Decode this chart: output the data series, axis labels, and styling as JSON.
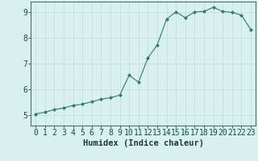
{
  "x": [
    0,
    1,
    2,
    3,
    4,
    5,
    6,
    7,
    8,
    9,
    10,
    11,
    12,
    13,
    14,
    15,
    16,
    17,
    18,
    19,
    20,
    21,
    22,
    23
  ],
  "y": [
    5.05,
    5.12,
    5.22,
    5.28,
    5.38,
    5.43,
    5.52,
    5.62,
    5.68,
    5.78,
    6.55,
    6.28,
    7.22,
    7.72,
    8.72,
    9.0,
    8.78,
    9.0,
    9.02,
    9.18,
    9.02,
    8.98,
    8.88,
    8.32
  ],
  "line_color": "#2e7d6e",
  "marker": "D",
  "marker_size": 2.0,
  "bg_color": "#d8f0ee",
  "grid_major_color": "#c8e0dc",
  "grid_minor_color": "#d0e8e4",
  "axis_color": "#4a7070",
  "xlabel": "Humidex (Indice chaleur)",
  "xlabel_fontsize": 7.5,
  "tick_fontsize": 7,
  "ylim": [
    4.6,
    9.4
  ],
  "xlim": [
    -0.5,
    23.5
  ],
  "yticks": [
    5,
    6,
    7,
    8,
    9
  ],
  "xticks": [
    0,
    1,
    2,
    3,
    4,
    5,
    6,
    7,
    8,
    9,
    10,
    11,
    12,
    13,
    14,
    15,
    16,
    17,
    18,
    19,
    20,
    21,
    22,
    23
  ]
}
